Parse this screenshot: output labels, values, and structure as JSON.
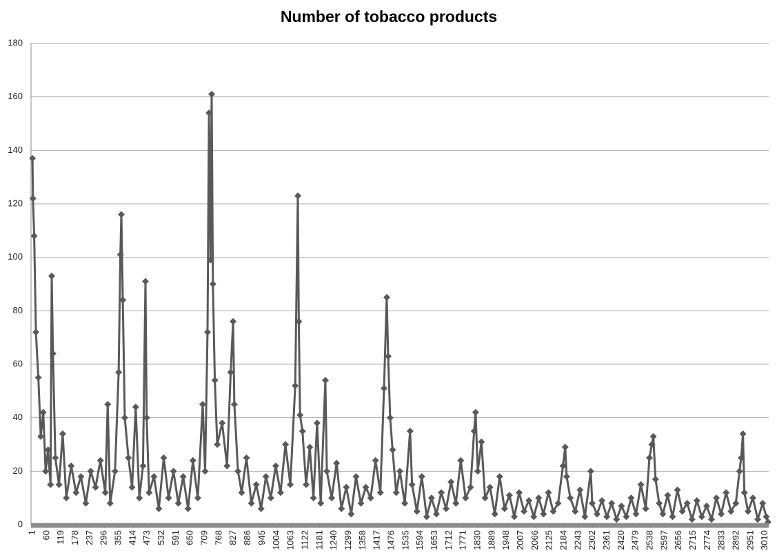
{
  "chart_data": {
    "type": "line",
    "title": "Number of tobacco products",
    "color": "#595959",
    "grid": true,
    "ylim": [
      0,
      180
    ],
    "yticks": [
      0,
      20,
      40,
      60,
      80,
      100,
      120,
      140,
      160,
      180
    ],
    "xlim": [
      -5,
      3025
    ],
    "xticks": [
      1,
      60,
      119,
      178,
      237,
      296,
      355,
      414,
      473,
      532,
      591,
      650,
      709,
      768,
      827,
      886,
      945,
      1004,
      1063,
      1122,
      1181,
      1240,
      1299,
      1358,
      1417,
      1476,
      1535,
      1594,
      1653,
      1712,
      1771,
      1830,
      1889,
      1948,
      2007,
      2066,
      2125,
      2184,
      2243,
      2302,
      2361,
      2420,
      2479,
      2538,
      2597,
      2656,
      2715,
      2774,
      2833,
      2892,
      2951,
      3010
    ],
    "x": [
      1,
      3,
      8,
      15,
      25,
      35,
      45,
      55,
      65,
      75,
      80,
      85,
      95,
      110,
      125,
      140,
      160,
      180,
      200,
      220,
      240,
      260,
      280,
      300,
      310,
      320,
      340,
      355,
      362,
      366,
      372,
      380,
      395,
      410,
      425,
      440,
      455,
      465,
      470,
      480,
      500,
      520,
      540,
      560,
      580,
      600,
      620,
      640,
      660,
      680,
      700,
      710,
      720,
      726,
      732,
      737,
      742,
      750,
      760,
      780,
      800,
      815,
      825,
      830,
      845,
      860,
      880,
      900,
      920,
      940,
      960,
      980,
      1000,
      1020,
      1040,
      1060,
      1080,
      1091,
      1095,
      1100,
      1110,
      1125,
      1140,
      1155,
      1170,
      1185,
      1204,
      1210,
      1230,
      1250,
      1270,
      1290,
      1310,
      1330,
      1350,
      1370,
      1390,
      1410,
      1430,
      1445,
      1456,
      1462,
      1470,
      1480,
      1495,
      1510,
      1530,
      1552,
      1560,
      1580,
      1600,
      1620,
      1640,
      1660,
      1680,
      1700,
      1720,
      1740,
      1760,
      1780,
      1800,
      1815,
      1821,
      1830,
      1845,
      1860,
      1880,
      1900,
      1920,
      1940,
      1960,
      1980,
      2000,
      2020,
      2040,
      2060,
      2080,
      2100,
      2120,
      2140,
      2160,
      2180,
      2189,
      2195,
      2210,
      2230,
      2250,
      2270,
      2294,
      2300,
      2320,
      2340,
      2360,
      2380,
      2400,
      2420,
      2440,
      2460,
      2480,
      2500,
      2520,
      2535,
      2545,
      2551,
      2560,
      2575,
      2590,
      2610,
      2630,
      2650,
      2670,
      2690,
      2710,
      2730,
      2750,
      2770,
      2790,
      2810,
      2830,
      2850,
      2870,
      2890,
      2905,
      2912,
      2919,
      2925,
      2940,
      2960,
      2980,
      3000,
      3015,
      3022
    ],
    "values": [
      137,
      122,
      108,
      72,
      55,
      33,
      42,
      20,
      28,
      15,
      93,
      64,
      25,
      15,
      34,
      10,
      22,
      12,
      18,
      8,
      20,
      14,
      24,
      12,
      45,
      8,
      20,
      57,
      101,
      116,
      84,
      40,
      25,
      14,
      44,
      10,
      22,
      91,
      40,
      12,
      18,
      6,
      25,
      10,
      20,
      8,
      18,
      6,
      24,
      10,
      45,
      20,
      72,
      154,
      99,
      161,
      90,
      54,
      30,
      38,
      22,
      57,
      76,
      45,
      20,
      12,
      25,
      8,
      15,
      6,
      18,
      10,
      22,
      12,
      30,
      15,
      52,
      123,
      76,
      41,
      35,
      15,
      29,
      10,
      38,
      8,
      54,
      20,
      10,
      23,
      6,
      14,
      4,
      18,
      8,
      14,
      10,
      24,
      12,
      51,
      85,
      63,
      40,
      28,
      12,
      20,
      8,
      35,
      15,
      5,
      18,
      3,
      10,
      4,
      12,
      6,
      16,
      8,
      24,
      10,
      14,
      35,
      42,
      20,
      31,
      10,
      14,
      4,
      18,
      6,
      11,
      3,
      12,
      5,
      9,
      3,
      10,
      4,
      12,
      5,
      8,
      22,
      29,
      18,
      10,
      5,
      13,
      3,
      20,
      8,
      4,
      9,
      3,
      8,
      2,
      7,
      3,
      10,
      4,
      15,
      6,
      25,
      30,
      33,
      17,
      8,
      4,
      11,
      3,
      13,
      5,
      8,
      2,
      9,
      3,
      7,
      2,
      10,
      4,
      12,
      5,
      8,
      20,
      25,
      34,
      12,
      5,
      10,
      2,
      8,
      3,
      1
    ]
  }
}
